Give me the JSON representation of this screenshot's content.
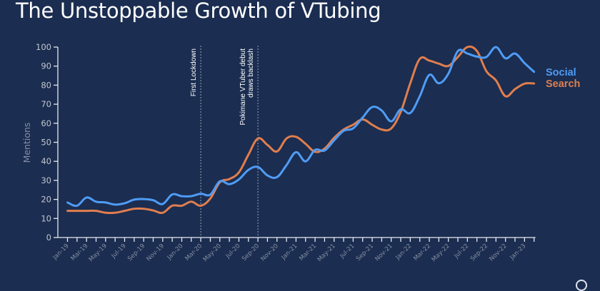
{
  "title": "The Unstoppable Growth of VTubing",
  "chart_data": {
    "type": "line",
    "title": "The Unstoppable Growth of VTubing",
    "xlabel": "",
    "ylabel": "Mentions",
    "ylim": [
      0,
      100
    ],
    "yticks": [
      0,
      10,
      20,
      30,
      40,
      50,
      60,
      70,
      80,
      90,
      100
    ],
    "grid": false,
    "legend_placement": "right (inline at line ends)",
    "x": [
      "Jan-19",
      "Feb-19",
      "Mar-19",
      "Apr-19",
      "May-19",
      "Jun-19",
      "Jul-19",
      "Aug-19",
      "Sep-19",
      "Oct-19",
      "Nov-19",
      "Dec-19",
      "Jan-20",
      "Feb-20",
      "Mar-20",
      "Apr-20",
      "May-20",
      "Jun-20",
      "Jul-20",
      "Aug-20",
      "Sep-20",
      "Oct-20",
      "Nov-20",
      "Dec-20",
      "Jan-21",
      "Feb-21",
      "Mar-21",
      "Apr-21",
      "May-21",
      "Jun-21",
      "Jul-21",
      "Aug-21",
      "Sep-21",
      "Oct-21",
      "Nov-21",
      "Dec-21",
      "Jan-22",
      "Feb-22",
      "Mar-22",
      "Apr-22",
      "May-22",
      "Jun-22",
      "Jul-22",
      "Aug-22",
      "Sep-22",
      "Oct-22",
      "Nov-22",
      "Dec-22",
      "Jan-23",
      "Feb-23"
    ],
    "xtick_labels": [
      "Jan-19",
      "Mar-19",
      "May-19",
      "Jul-19",
      "Sep-19",
      "Nov-19",
      "Jan-20",
      "Mar-20",
      "May-20",
      "Jul-20",
      "Sep-20",
      "Nov-20",
      "Jan-21",
      "Mar-21",
      "May-21",
      "Jul-21",
      "Sep-21",
      "Nov-21",
      "Jan-22",
      "Mar-22",
      "May-22",
      "Jul-22",
      "Sep-22",
      "Nov-22",
      "Jan-23"
    ],
    "series": [
      {
        "name": "Social",
        "color": "#4f9cf5",
        "values": [
          18.4,
          16.7,
          21,
          18.8,
          18.4,
          17.3,
          18,
          19.9,
          20.2,
          19.6,
          17.6,
          22.6,
          21.7,
          21.7,
          23,
          22.5,
          29.5,
          28,
          30.5,
          35.5,
          37,
          32.6,
          31.7,
          38,
          44.8,
          40,
          46,
          45.7,
          51,
          56,
          57.3,
          63,
          68.5,
          66.7,
          61,
          67.3,
          65.4,
          74.2,
          85.4,
          81,
          86,
          97.9,
          96.6,
          95,
          94.8,
          100,
          94.1,
          96.6,
          91.6,
          87
        ]
      },
      {
        "name": "Search",
        "color": "#e07e4e",
        "values": [
          14,
          14,
          14,
          14,
          13,
          13,
          14,
          15.1,
          15.1,
          14.2,
          13,
          16.7,
          16.7,
          18.8,
          16.7,
          20.5,
          29,
          30.7,
          34.2,
          43.5,
          52,
          48.6,
          45.2,
          52,
          52.9,
          49.2,
          45,
          46.7,
          52.3,
          56.7,
          59.2,
          62,
          59.2,
          56.7,
          57.3,
          66,
          81,
          93.8,
          92.9,
          91.3,
          90.1,
          94.8,
          100,
          97.9,
          87.3,
          82.5,
          74.2,
          77.9,
          80.8,
          80.9
        ]
      }
    ],
    "annotations": [
      {
        "x": "Mar-20",
        "lines": [
          "First Lockdown"
        ]
      },
      {
        "x": "Sep-20",
        "lines": [
          "Pokimane VTuber debut",
          "draws backlash"
        ]
      }
    ]
  },
  "legend": {
    "social": "Social",
    "search": "Search"
  },
  "logo": "brand-logo"
}
